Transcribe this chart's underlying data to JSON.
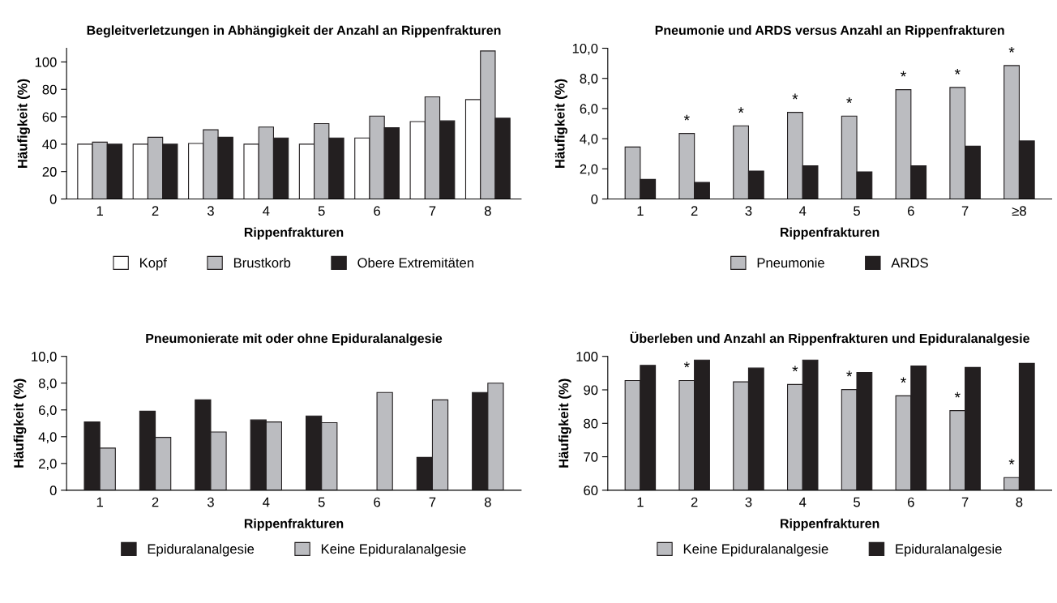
{
  "chart_data": [
    {
      "type": "bar",
      "title": "Begleitverletzungen in Abhängigkeit der Anzahl an Rippenfrakturen",
      "xlabel": "Rippenfrakturen",
      "ylabel": "Häufigkeit (%)",
      "categories": [
        "1",
        "2",
        "3",
        "4",
        "5",
        "6",
        "7",
        "8"
      ],
      "series": [
        {
          "name": "Kopf",
          "color": "#ffffff",
          "values": [
            40,
            40,
            40.5,
            40,
            40,
            44.5,
            56.5,
            72.5
          ]
        },
        {
          "name": "Brustkorb",
          "color": "#bbbcc0",
          "values": [
            41.5,
            45,
            50.5,
            52.5,
            55,
            60.5,
            74.5,
            108
          ]
        },
        {
          "name": "Obere Extremitäten",
          "color": "#231f20",
          "values": [
            40,
            40,
            45,
            44.5,
            44.5,
            52,
            57,
            59
          ]
        }
      ],
      "ylim": [
        0,
        110
      ],
      "yticks": [
        0,
        20,
        40,
        60,
        80,
        100
      ],
      "legend": "bottom",
      "grid": false
    },
    {
      "type": "bar",
      "title": "Pneumonie und ARDS versus Anzahl an Rippenfrakturen",
      "xlabel": "Rippenfrakturen",
      "ylabel": "Häufigkeit (%)",
      "categories": [
        "1",
        "2",
        "3",
        "4",
        "5",
        "6",
        "7",
        "≥8"
      ],
      "series": [
        {
          "name": "Pneumonie",
          "color": "#bbbcc0",
          "values": [
            3.45,
            4.35,
            4.85,
            5.75,
            5.5,
            7.25,
            7.4,
            8.85
          ]
        },
        {
          "name": "ARDS",
          "color": "#231f20",
          "values": [
            1.3,
            1.1,
            1.85,
            2.2,
            1.8,
            2.2,
            3.5,
            3.85
          ]
        }
      ],
      "ylim": [
        0,
        10
      ],
      "yticks": [
        0,
        {
          "value": 2,
          "label": "2,0"
        },
        {
          "value": 4,
          "label": "4,0"
        },
        {
          "value": 6,
          "label": "6,0"
        },
        {
          "value": 8,
          "label": "8,0"
        },
        {
          "value": 10,
          "label": "10,0"
        }
      ],
      "legend": "bottom",
      "grid": false,
      "annotations": [
        {
          "text": "*",
          "x": "2",
          "y": 4.35
        },
        {
          "text": "*",
          "x": "3",
          "y": 4.85
        },
        {
          "text": "*",
          "x": "4",
          "y": 5.75
        },
        {
          "text": "*",
          "x": "5",
          "y": 5.5
        },
        {
          "text": "*",
          "x": "6",
          "y": 7.25
        },
        {
          "text": "*",
          "x": "7",
          "y": 7.4
        },
        {
          "text": "*",
          "x": "≥8",
          "y": 8.85
        }
      ]
    },
    {
      "type": "bar",
      "title": "Pneumonierate mit oder ohne Epiduralanalgesie",
      "xlabel": "Rippenfrakturen",
      "ylabel": "Häufigkeit (%)",
      "categories": [
        "1",
        "2",
        "3",
        "4",
        "5",
        "6",
        "7",
        "8"
      ],
      "series": [
        {
          "name": "Epiduralanalgesie",
          "color": "#231f20",
          "values": [
            5.1,
            5.9,
            6.75,
            5.25,
            5.55,
            null,
            2.45,
            7.3
          ]
        },
        {
          "name": "Keine Epiduralanalgesie",
          "color": "#bbbcc0",
          "values": [
            3.15,
            3.95,
            4.35,
            5.1,
            5.05,
            7.3,
            6.75,
            8.0
          ]
        }
      ],
      "ylim": [
        0,
        10
      ],
      "yticks": [
        0,
        {
          "value": 2,
          "label": "2,0"
        },
        {
          "value": 4,
          "label": "4,0"
        },
        {
          "value": 6,
          "label": "6,0"
        },
        {
          "value": 8,
          "label": "8,0"
        },
        {
          "value": 10,
          "label": "10,0"
        }
      ],
      "legend": "bottom",
      "grid": false
    },
    {
      "type": "bar",
      "title": "Überleben und Anzahl an Rippenfrakturen und Epiduralanalgesie",
      "xlabel": "Rippenfrakturen",
      "ylabel": "Häufigkeit (%)",
      "categories": [
        "1",
        "2",
        "3",
        "4",
        "5",
        "6",
        "7",
        "8"
      ],
      "series": [
        {
          "name": "Keine Epiduralanalgesie",
          "color": "#bbbcc0",
          "values": [
            92.8,
            92.8,
            92.4,
            91.6,
            90.1,
            88.2,
            83.8,
            63.8
          ]
        },
        {
          "name": "Epiduralanalgesie",
          "color": "#231f20",
          "values": [
            97.3,
            98.9,
            96.5,
            98.9,
            95.2,
            97.1,
            96.7,
            97.9
          ]
        }
      ],
      "ylim": [
        60,
        100
      ],
      "yticks": [
        60,
        70,
        80,
        90,
        100
      ],
      "legend": "bottom",
      "grid": false,
      "annotations": [
        {
          "text": "*",
          "x": "2",
          "y": 92.8
        },
        {
          "text": "*",
          "x": "4",
          "y": 91.6
        },
        {
          "text": "*",
          "x": "5",
          "y": 90.1
        },
        {
          "text": "*",
          "x": "6",
          "y": 88.2
        },
        {
          "text": "*",
          "x": "7",
          "y": 83.8
        },
        {
          "text": "*",
          "x": "8",
          "y": 63.8
        }
      ]
    }
  ]
}
